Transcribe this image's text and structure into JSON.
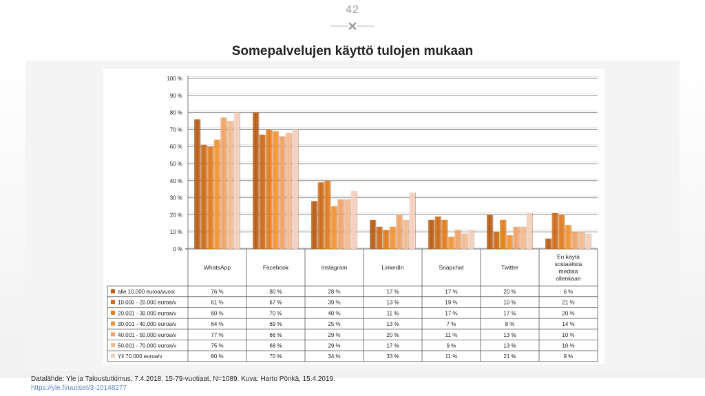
{
  "page_number": "42",
  "title": "Somepalvelujen käyttö tulojen mukaan",
  "source": "Datalähde: Yle ja Taloustutkimus, 7.4.2018, 15-79-vuotiaat, N=1089. Kuva: Harto Pönkä, 15.4.2019.",
  "link": "https://yle.fi/uutiset/3-10148277",
  "chart_data": {
    "type": "bar",
    "title": "Somepalvelujen käyttö tulojen mukaan",
    "ylim": [
      0,
      100
    ],
    "yticks": [
      "0 %",
      "10 %",
      "20 %",
      "30 %",
      "40 %",
      "50 %",
      "60 %",
      "70 %",
      "80 %",
      "90 %",
      "100 %"
    ],
    "categories": [
      "WhatsApp",
      "Facebook",
      "Instagram",
      "LinkedIn",
      "Snapchat",
      "Twitter",
      "En käytä\nsosiaalista\nmediaa\nollenkaan"
    ],
    "series": [
      {
        "name": "alle 10.000 euroa/vuosi",
        "color": "#b85e17",
        "values": [
          76,
          80,
          28,
          17,
          17,
          20,
          6
        ],
        "labels": [
          "76 %",
          "80 %",
          "28 %",
          "17 %",
          "17 %",
          "20 %",
          "6 %"
        ]
      },
      {
        "name": "10.000 - 20.000 euroa/v",
        "color": "#cb6c1c",
        "values": [
          61,
          67,
          39,
          13,
          19,
          10,
          21
        ],
        "labels": [
          "61 %",
          "67 %",
          "39 %",
          "13 %",
          "19 %",
          "10 %",
          "21 %"
        ]
      },
      {
        "name": "20.001 - 30.000 euroa/v",
        "color": "#e07d21",
        "values": [
          60,
          70,
          40,
          11,
          17,
          17,
          20
        ],
        "labels": [
          "60 %",
          "70 %",
          "40 %",
          "11 %",
          "17 %",
          "17 %",
          "20 %"
        ]
      },
      {
        "name": "30.001 - 40.000 euroa/v",
        "color": "#f29535",
        "values": [
          64,
          69,
          25,
          13,
          7,
          8,
          14
        ],
        "labels": [
          "64 %",
          "69 %",
          "25 %",
          "13 %",
          "7 %",
          "8 %",
          "14 %"
        ]
      },
      {
        "name": "40.001 - 50.000 euroa/v",
        "color": "#efa46a",
        "values": [
          77,
          66,
          29,
          20,
          11,
          13,
          10
        ],
        "labels": [
          "77 %",
          "66 %",
          "29 %",
          "20 %",
          "11 %",
          "13 %",
          "10 %"
        ]
      },
      {
        "name": "50.001 - 70.000 euroa/v",
        "color": "#f2bb90",
        "values": [
          75,
          68,
          29,
          17,
          9,
          13,
          10
        ],
        "labels": [
          "75 %",
          "68 %",
          "29 %",
          "17 %",
          "9 %",
          "13 %",
          "10 %"
        ]
      },
      {
        "name": "Yli 70.000 euroa/v",
        "color": "#f3cfbd",
        "values": [
          80,
          70,
          34,
          33,
          11,
          21,
          9
        ],
        "labels": [
          "80 %",
          "70 %",
          "34 %",
          "33 %",
          "11 %",
          "21 %",
          "9 %"
        ]
      }
    ]
  }
}
